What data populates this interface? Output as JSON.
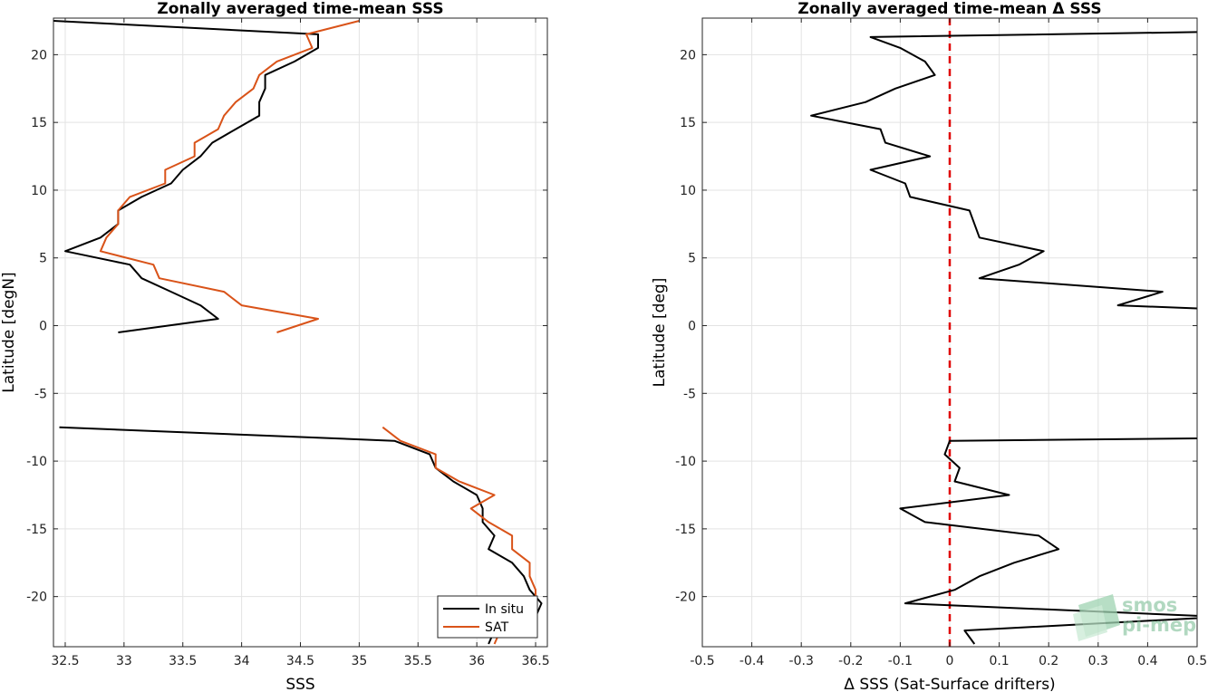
{
  "logo": {
    "line1": "smos",
    "line2": "pi-mep",
    "color": "#7dbf96"
  },
  "chart_data": [
    {
      "type": "line",
      "title": "Zonally averaged time-mean SSS",
      "xlabel": "SSS",
      "ylabel": "Latitude [degN]",
      "xlim": [
        32.4,
        36.6
      ],
      "ylim": [
        -23.7,
        22.7
      ],
      "xticks": [
        32.5,
        33,
        33.5,
        34,
        34.5,
        35,
        35.5,
        36,
        36.5
      ],
      "xtick_labels": [
        "32.5",
        "33",
        "33.5",
        "34",
        "34.5",
        "35",
        "35.5",
        "36",
        "36.5"
      ],
      "yticks": [
        20,
        15,
        10,
        5,
        0,
        -5,
        -10,
        -15,
        -20
      ],
      "ytick_labels": [
        "20",
        "15",
        "10",
        "5",
        "0",
        "-5",
        "-10",
        "-15",
        "-20"
      ],
      "grid": true,
      "legend_position": "bottom-right",
      "series": [
        {
          "name": "In situ",
          "color": "#000000",
          "segments": [
            [
              [
                32.4,
                22.5
              ],
              [
                34.65,
                21.5
              ],
              [
                34.65,
                20.5
              ],
              [
                34.45,
                19.5
              ],
              [
                34.2,
                18.5
              ],
              [
                34.2,
                17.5
              ],
              [
                34.15,
                16.5
              ],
              [
                34.15,
                15.5
              ],
              [
                33.95,
                14.5
              ],
              [
                33.75,
                13.5
              ],
              [
                33.65,
                12.5
              ],
              [
                33.5,
                11.5
              ],
              [
                33.4,
                10.5
              ],
              [
                33.15,
                9.5
              ],
              [
                32.95,
                8.5
              ],
              [
                32.95,
                7.5
              ],
              [
                32.8,
                6.5
              ],
              [
                32.5,
                5.5
              ],
              [
                33.05,
                4.5
              ],
              [
                33.15,
                3.5
              ],
              [
                33.4,
                2.5
              ],
              [
                33.65,
                1.5
              ],
              [
                33.8,
                0.5
              ],
              [
                32.95,
                -0.5
              ]
            ],
            [
              [
                32.45,
                -7.5
              ],
              [
                35.3,
                -8.5
              ],
              [
                35.6,
                -9.5
              ],
              [
                35.65,
                -10.5
              ],
              [
                35.8,
                -11.5
              ],
              [
                36.0,
                -12.5
              ],
              [
                36.05,
                -13.5
              ],
              [
                36.05,
                -14.5
              ],
              [
                36.15,
                -15.5
              ],
              [
                36.1,
                -16.5
              ],
              [
                36.3,
                -17.5
              ],
              [
                36.4,
                -18.5
              ],
              [
                36.45,
                -19.5
              ],
              [
                36.55,
                -20.5
              ],
              [
                36.5,
                -21.5
              ],
              [
                36.15,
                -22.5
              ],
              [
                36.1,
                -23.5
              ]
            ]
          ]
        },
        {
          "name": "SAT",
          "color": "#d95319",
          "segments": [
            [
              [
                35.0,
                22.5
              ],
              [
                34.55,
                21.5
              ],
              [
                34.6,
                20.5
              ],
              [
                34.3,
                19.5
              ],
              [
                34.15,
                18.5
              ],
              [
                34.1,
                17.5
              ],
              [
                33.95,
                16.5
              ],
              [
                33.85,
                15.5
              ],
              [
                33.8,
                14.5
              ],
              [
                33.6,
                13.5
              ],
              [
                33.6,
                12.5
              ],
              [
                33.35,
                11.5
              ],
              [
                33.35,
                10.5
              ],
              [
                33.05,
                9.5
              ],
              [
                32.95,
                8.5
              ],
              [
                32.95,
                7.5
              ],
              [
                32.85,
                6.5
              ],
              [
                32.8,
                5.5
              ],
              [
                33.25,
                4.5
              ],
              [
                33.3,
                3.5
              ],
              [
                33.85,
                2.5
              ],
              [
                34.0,
                1.5
              ],
              [
                34.65,
                0.5
              ],
              [
                34.3,
                -0.5
              ]
            ],
            [
              [
                35.2,
                -7.5
              ],
              [
                35.35,
                -8.5
              ],
              [
                35.65,
                -9.5
              ],
              [
                35.65,
                -10.5
              ],
              [
                35.85,
                -11.5
              ],
              [
                36.15,
                -12.5
              ],
              [
                35.95,
                -13.5
              ],
              [
                36.1,
                -14.5
              ],
              [
                36.3,
                -15.5
              ],
              [
                36.3,
                -16.5
              ],
              [
                36.45,
                -17.5
              ],
              [
                36.45,
                -18.5
              ],
              [
                36.5,
                -19.5
              ],
              [
                36.5,
                -20.5
              ],
              [
                36.4,
                -21.5
              ],
              [
                36.2,
                -22.5
              ],
              [
                36.15,
                -23.5
              ]
            ]
          ]
        }
      ]
    },
    {
      "type": "line",
      "title": "Zonally averaged time-mean Δ SSS",
      "xlabel": "Δ SSS (Sat-Surface drifters)",
      "ylabel": "Latitude [deg]",
      "xlim": [
        -0.5,
        0.5
      ],
      "ylim": [
        -23.7,
        22.7
      ],
      "xticks": [
        -0.5,
        -0.4,
        -0.3,
        -0.2,
        -0.1,
        0,
        0.1,
        0.2,
        0.3,
        0.4,
        0.5
      ],
      "xtick_labels": [
        "-0.5",
        "-0.4",
        "-0.3",
        "-0.2",
        "-0.1",
        "0",
        "0.1",
        "0.2",
        "0.3",
        "0.4",
        "0.5"
      ],
      "yticks": [
        20,
        15,
        10,
        5,
        0,
        -5,
        -10,
        -15,
        -20
      ],
      "ytick_labels": [
        "20",
        "15",
        "10",
        "5",
        "0",
        "-5",
        "-10",
        "-15",
        "-20"
      ],
      "grid": true,
      "reference_line": {
        "x": 0,
        "color": "#e00000",
        "style": "dashed"
      },
      "series": [
        {
          "color": "#000000",
          "segments": [
            [
              [
                0.55,
                21.7
              ],
              [
                -0.16,
                21.3
              ],
              [
                -0.1,
                20.5
              ],
              [
                -0.05,
                19.5
              ],
              [
                -0.03,
                18.5
              ],
              [
                -0.11,
                17.5
              ],
              [
                -0.17,
                16.5
              ],
              [
                -0.28,
                15.5
              ],
              [
                -0.14,
                14.5
              ],
              [
                -0.13,
                13.5
              ],
              [
                -0.04,
                12.5
              ],
              [
                -0.16,
                11.5
              ],
              [
                -0.09,
                10.5
              ],
              [
                -0.08,
                9.5
              ],
              [
                0.04,
                8.5
              ],
              [
                0.05,
                7.5
              ],
              [
                0.06,
                6.5
              ],
              [
                0.19,
                5.5
              ],
              [
                0.14,
                4.5
              ],
              [
                0.06,
                3.5
              ],
              [
                0.43,
                2.5
              ],
              [
                0.34,
                1.5
              ],
              [
                0.55,
                1.2
              ]
            ],
            [
              [
                0.55,
                -8.3
              ],
              [
                0.0,
                -8.5
              ],
              [
                -0.01,
                -9.5
              ],
              [
                0.02,
                -10.5
              ],
              [
                0.01,
                -11.5
              ],
              [
                0.12,
                -12.5
              ],
              [
                -0.1,
                -13.5
              ],
              [
                -0.05,
                -14.5
              ],
              [
                0.18,
                -15.5
              ],
              [
                0.22,
                -16.5
              ],
              [
                0.13,
                -17.5
              ],
              [
                0.06,
                -18.5
              ],
              [
                0.01,
                -19.5
              ],
              [
                -0.09,
                -20.5
              ],
              [
                0.55,
                -21.5
              ],
              [
                0.03,
                -22.5
              ],
              [
                0.05,
                -23.5
              ]
            ]
          ]
        }
      ]
    }
  ],
  "legend": {
    "entries": [
      {
        "label": "In situ",
        "color": "#000000"
      },
      {
        "label": "SAT",
        "color": "#d95319"
      }
    ]
  }
}
